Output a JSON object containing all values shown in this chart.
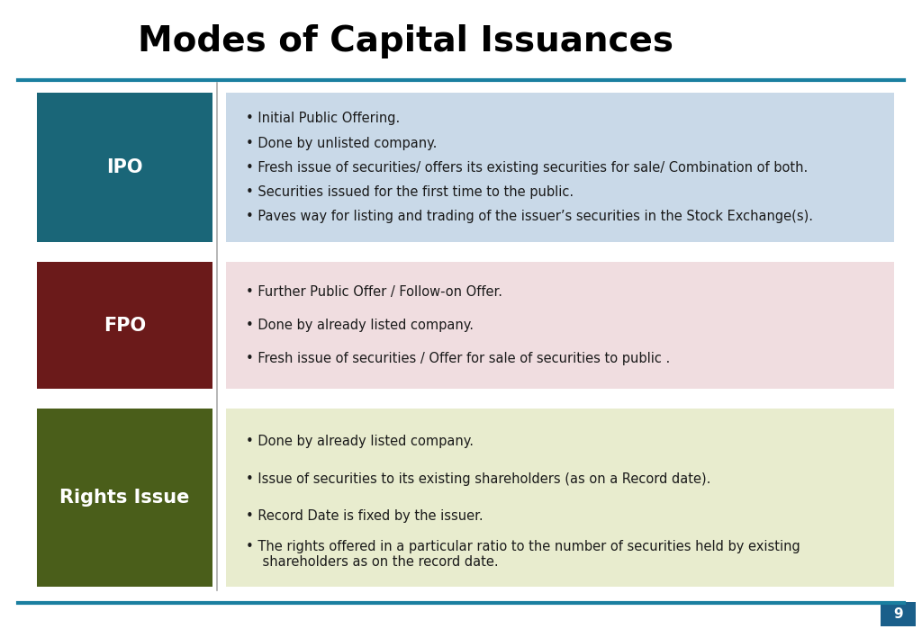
{
  "title": "Modes of Capital Issuances",
  "title_fontsize": 28,
  "title_fontweight": "bold",
  "title_color": "#000000",
  "background_color": "#ffffff",
  "header_line_color": "#1a7fa0",
  "footer_line_color": "#1a7fa0",
  "page_number": "9",
  "page_number_bg": "#1a5f8a",
  "divider_line_color": "#aaaaaa",
  "rows": [
    {
      "label": "IPO",
      "label_color": "#ffffff",
      "label_bg": "#1a6678",
      "content_bg": "#c9d9e8",
      "bullets": [
        "Initial Public Offering.",
        "Done by unlisted company.",
        "Fresh issue of securities/ offers its existing securities for sale/ Combination of both.",
        "Securities issued for the first time to the public.",
        "Paves way for listing and trading of the issuer’s securities in the Stock Exchange(s)."
      ]
    },
    {
      "label": "FPO",
      "label_color": "#ffffff",
      "label_bg": "#6b1a1a",
      "content_bg": "#f0dde0",
      "bullets": [
        "Further Public Offer / Follow-on Offer.",
        "Done by already listed company.",
        "Fresh issue of securities / Offer for sale of securities to public ."
      ]
    },
    {
      "label": "Rights Issue",
      "label_color": "#ffffff",
      "label_bg": "#4a5e1a",
      "content_bg": "#e8ecce",
      "bullets": [
        "Done by already listed company.",
        "Issue of securities to its existing shareholders (as on a Record date).",
        "Record Date is fixed by the issuer.",
        "The rights offered in a particular ratio to the number of securities held by existing\n    shareholders as on the record date."
      ]
    }
  ]
}
